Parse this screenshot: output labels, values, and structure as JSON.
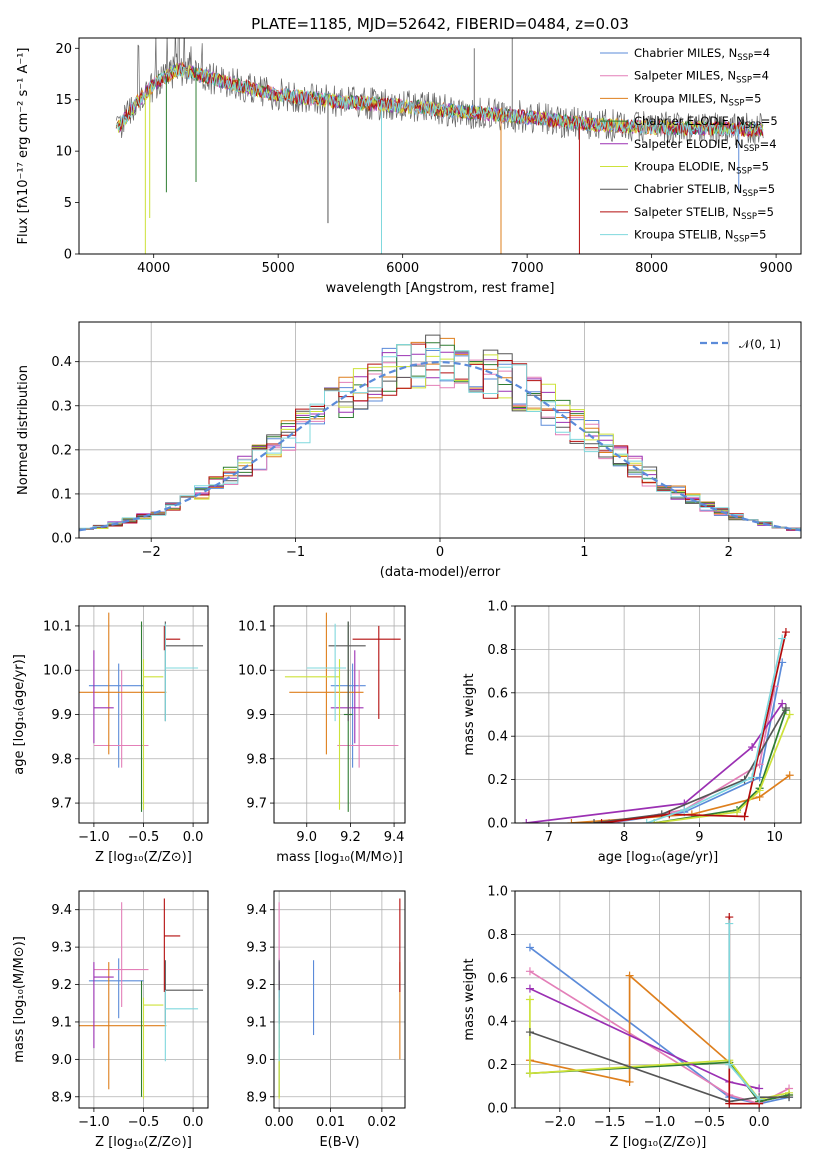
{
  "colors": [
    "#5b8bd9",
    "#e37fb8",
    "#de7f1d",
    "#2e7d32",
    "#9b30b3",
    "#cde23a",
    "#555555",
    "#b30d0d",
    "#7fd8dd"
  ],
  "chart_data": [
    {
      "id": "spectrum",
      "type": "line",
      "title": "PLATE=1185, MJD=52642, FIBERID=0484, z=0.03",
      "xlabel": "wavelength [Angstrom, rest frame]",
      "ylabel": "Flux [fλ10⁻¹⁷ erg cm⁻² s⁻¹ A⁻¹]",
      "xlim": [
        3400,
        9200
      ],
      "ylim": [
        0,
        21
      ],
      "xticks": [
        "4000",
        "5000",
        "6000",
        "7000",
        "8000",
        "9000"
      ],
      "yticks": [
        "0",
        "5",
        "10",
        "15",
        "20"
      ],
      "legend": "top-right",
      "continuum": [
        [
          3700,
          12.0
        ],
        [
          3850,
          14.5
        ],
        [
          4000,
          16.5
        ],
        [
          4200,
          18.0
        ],
        [
          4500,
          17.0
        ],
        [
          4800,
          16.0
        ],
        [
          5000,
          15.5
        ],
        [
          5500,
          14.8
        ],
        [
          6000,
          14.4
        ],
        [
          6500,
          13.8
        ],
        [
          7000,
          13.3
        ],
        [
          7500,
          12.6
        ],
        [
          8000,
          12.3
        ],
        [
          8500,
          12.2
        ],
        [
          8900,
          12.1
        ]
      ],
      "series": [
        {
          "name": "Chabrier MILES, N",
          "sub": "SSP",
          "suffix": "=4"
        },
        {
          "name": "Salpeter MILES, N",
          "sub": "SSP",
          "suffix": "=4"
        },
        {
          "name": "Kroupa MILES, N",
          "sub": "SSP",
          "suffix": "=5"
        },
        {
          "name": "Chabrier ELODIE, N",
          "sub": "SSP",
          "suffix": "=5"
        },
        {
          "name": "Salpeter ELODIE, N",
          "sub": "SSP",
          "suffix": "=4"
        },
        {
          "name": "Kroupa ELODIE, N",
          "sub": "SSP",
          "suffix": "=5"
        },
        {
          "name": "Chabrier STELIB, N",
          "sub": "SSP",
          "suffix": "=5"
        },
        {
          "name": "Salpeter STELIB, N",
          "sub": "SSP",
          "suffix": "=5"
        },
        {
          "name": "Kroupa STELIB, N",
          "sub": "SSP",
          "suffix": "=5"
        }
      ]
    },
    {
      "id": "residuals",
      "type": "step",
      "xlabel": "(data-model)/error",
      "ylabel": "Normed distribution",
      "xlim": [
        -2.5,
        2.5
      ],
      "ylim": [
        0,
        0.49
      ],
      "xticks": [
        "−2",
        "−1",
        "0",
        "1",
        "2"
      ],
      "yticks": [
        "0.0",
        "0.1",
        "0.2",
        "0.3",
        "0.4"
      ],
      "grid": true,
      "legend": "top-right",
      "reference_label": "𝒩(0, 1)",
      "bin_width": 0.1
    },
    {
      "id": "age-vs-Z",
      "type": "errorbar",
      "xlabel": "Z [log₁₀(Z/Z⊙)]",
      "ylabel": "age  [log₁₀(age/yr)]",
      "xlim": [
        -1.15,
        0.15
      ],
      "ylim": [
        9.655,
        10.145
      ],
      "xticks": [
        "−1.0",
        "−0.5",
        "0.0"
      ],
      "yticks": [
        "9.7",
        "9.8",
        "9.9",
        "10.0",
        "10.1"
      ],
      "grid": true,
      "points": [
        {
          "x": -0.75,
          "xerr": [
            0.3,
            0.25
          ],
          "y": 9.965,
          "yerr": [
            0.185,
            0.05
          ]
        },
        {
          "x": -0.72,
          "xerr": [
            0.28,
            0.27
          ],
          "y": 9.83,
          "yerr": [
            0.05,
            0.17
          ]
        },
        {
          "x": -0.85,
          "xerr": [
            0.3,
            0.58
          ],
          "y": 9.95,
          "yerr": [
            0.14,
            0.18
          ]
        },
        {
          "x": -0.52,
          "xerr": [
            0.0,
            0.0
          ],
          "y": 9.9,
          "yerr": [
            0.22,
            0.21
          ]
        },
        {
          "x": -1.0,
          "xerr": [
            0.0,
            0.2
          ],
          "y": 9.915,
          "yerr": [
            0.08,
            0.13
          ]
        },
        {
          "x": -0.5,
          "xerr": [
            0.0,
            0.2
          ],
          "y": 9.985,
          "yerr": [
            0.3,
            0.04
          ]
        },
        {
          "x": -0.28,
          "xerr": [
            0.0,
            0.38
          ],
          "y": 10.055,
          "yerr": [
            0.17,
            0.055
          ]
        },
        {
          "x": -0.29,
          "xerr": [
            0.0,
            0.16
          ],
          "y": 10.07,
          "yerr": [
            0.025,
            0.03
          ]
        },
        {
          "x": -0.28,
          "xerr": [
            0.0,
            0.33
          ],
          "y": 10.005,
          "yerr": [
            0.12,
            0.1
          ]
        }
      ]
    },
    {
      "id": "age-vs-mass",
      "type": "errorbar",
      "xlabel": "mass [log₁₀(M/M⊙)]",
      "ylabel": "",
      "xlim": [
        8.85,
        9.45
      ],
      "ylim": [
        9.655,
        10.145
      ],
      "xticks": [
        "9.0",
        "9.2",
        "9.4"
      ],
      "yticks": [
        "9.7",
        "9.8",
        "9.9",
        "10.0",
        "10.1"
      ],
      "grid": true,
      "points": [
        {
          "x": 9.21,
          "xerr": [
            0.1,
            0.06
          ],
          "y": 9.965,
          "yerr": [
            0.185,
            0.05
          ]
        },
        {
          "x": 9.24,
          "xerr": [
            0.1,
            0.18
          ],
          "y": 9.83,
          "yerr": [
            0.05,
            0.17
          ]
        },
        {
          "x": 9.09,
          "xerr": [
            0.17,
            0.17
          ],
          "y": 9.95,
          "yerr": [
            0.14,
            0.18
          ]
        },
        {
          "x": 9.19,
          "xerr": [
            0.02,
            0.02
          ],
          "y": 9.9,
          "yerr": [
            0.22,
            0.21
          ]
        },
        {
          "x": 9.22,
          "xerr": [
            0.11,
            0.04
          ],
          "y": 9.915,
          "yerr": [
            0.08,
            0.13
          ]
        },
        {
          "x": 9.15,
          "xerr": [
            0.25,
            0.0
          ],
          "y": 9.985,
          "yerr": [
            0.3,
            0.04
          ]
        },
        {
          "x": 9.19,
          "xerr": [
            0.09,
            0.08
          ],
          "y": 10.055,
          "yerr": [
            0.17,
            0.055
          ]
        },
        {
          "x": 9.33,
          "xerr": [
            0.12,
            0.1
          ],
          "y": 10.07,
          "yerr": [
            0.18,
            0.03
          ]
        },
        {
          "x": 9.13,
          "xerr": [
            0.13,
            0.05
          ],
          "y": 10.005,
          "yerr": [
            0.12,
            0.1
          ]
        }
      ]
    },
    {
      "id": "weight-vs-age",
      "type": "line",
      "xlabel": "age  [log₁₀(age/yr)]",
      "ylabel": "mass weight",
      "xlim": [
        6.55,
        10.35
      ],
      "ylim": [
        0,
        1
      ],
      "xticks": [
        "7",
        "8",
        "9",
        "10"
      ],
      "yticks": [
        "0.0",
        "0.2",
        "0.4",
        "0.6",
        "0.8",
        "1.0"
      ],
      "grid": true,
      "series": [
        {
          "x": [
            7.8,
            8.8,
            9.8,
            10.1
          ],
          "y": [
            0.0,
            0.05,
            0.21,
            0.74
          ]
        },
        {
          "x": [
            7.8,
            8.8,
            9.8,
            10.0
          ],
          "y": [
            0.0,
            0.06,
            0.27,
            0.63
          ]
        },
        {
          "x": [
            7.3,
            8.9,
            9.8,
            10.2
          ],
          "y": [
            0.0,
            0.04,
            0.12,
            0.22
          ]
        },
        {
          "x": [
            8.4,
            9.5,
            9.8,
            10.15
          ],
          "y": [
            0.0,
            0.06,
            0.16,
            0.52
          ]
        },
        {
          "x": [
            6.7,
            8.8,
            9.7,
            10.1
          ],
          "y": [
            0.0,
            0.09,
            0.35,
            0.55
          ]
        },
        {
          "x": [
            8.4,
            9.5,
            9.8,
            10.2
          ],
          "y": [
            0.0,
            0.05,
            0.15,
            0.5
          ]
        },
        {
          "x": [
            7.6,
            8.5,
            9.6,
            10.15
          ],
          "y": [
            0.0,
            0.04,
            0.2,
            0.53
          ]
        },
        {
          "x": [
            7.7,
            8.6,
            9.6,
            10.15
          ],
          "y": [
            0.0,
            0.04,
            0.03,
            0.88
          ]
        },
        {
          "x": [
            8.3,
            8.8,
            9.7,
            10.1
          ],
          "y": [
            0.0,
            0.06,
            0.21,
            0.85
          ]
        }
      ]
    },
    {
      "id": "mass-vs-Z",
      "type": "errorbar",
      "xlabel": "Z [log₁₀(Z/Z⊙)]",
      "ylabel": "mass [log₁₀(M/M⊙)]",
      "xlim": [
        -1.15,
        0.15
      ],
      "ylim": [
        8.87,
        9.45
      ],
      "xticks": [
        "−1.0",
        "−0.5",
        "0.0"
      ],
      "yticks": [
        "8.9",
        "9.0",
        "9.1",
        "9.2",
        "9.3",
        "9.4"
      ],
      "grid": true,
      "points": [
        {
          "x": -0.75,
          "xerr": [
            0.3,
            0.25
          ],
          "y": 9.21,
          "yerr": [
            0.1,
            0.06
          ]
        },
        {
          "x": -0.72,
          "xerr": [
            0.28,
            0.27
          ],
          "y": 9.24,
          "yerr": [
            0.1,
            0.18
          ]
        },
        {
          "x": -0.85,
          "xerr": [
            0.3,
            0.58
          ],
          "y": 9.09,
          "yerr": [
            0.17,
            0.17
          ]
        },
        {
          "x": -0.52,
          "xerr": [
            0.0,
            0.0
          ],
          "y": 9.19,
          "yerr": [
            0.29,
            0.02
          ]
        },
        {
          "x": -1.0,
          "xerr": [
            0.0,
            0.2
          ],
          "y": 9.22,
          "yerr": [
            0.19,
            0.04
          ]
        },
        {
          "x": -0.5,
          "xerr": [
            0.0,
            0.2
          ],
          "y": 9.145,
          "yerr": [
            0.25,
            0.02
          ]
        },
        {
          "x": -0.28,
          "xerr": [
            0.0,
            0.38
          ],
          "y": 9.185,
          "yerr": [
            0.09,
            0.08
          ]
        },
        {
          "x": -0.29,
          "xerr": [
            0.0,
            0.16
          ],
          "y": 9.33,
          "yerr": [
            0.15,
            0.1
          ]
        },
        {
          "x": -0.28,
          "xerr": [
            0.0,
            0.33
          ],
          "y": 9.135,
          "yerr": [
            0.14,
            0.05
          ]
        }
      ]
    },
    {
      "id": "mass-vs-ebv",
      "type": "errorbar",
      "xlabel": "E(B-V)",
      "ylabel": "",
      "xlim": [
        -0.001,
        0.0245
      ],
      "ylim": [
        8.87,
        9.45
      ],
      "xticks": [
        "0.00",
        "0.01",
        "0.02"
      ],
      "yticks": [
        "8.9",
        "9.0",
        "9.1",
        "9.2",
        "9.3",
        "9.4"
      ],
      "grid": true,
      "points": [
        {
          "x": 0.0,
          "y": 9.21,
          "yerr": [
            0.1,
            0.06
          ]
        },
        {
          "x": 0.0,
          "y": 9.24,
          "yerr": [
            0.1,
            0.18
          ]
        },
        {
          "x": 0.0235,
          "y": 9.09,
          "yerr": [
            0.09,
            0.17
          ]
        },
        {
          "x": 0.0,
          "y": 9.19,
          "yerr": [
            0.29,
            0.02
          ]
        },
        {
          "x": 0.0,
          "y": 9.22,
          "yerr": [
            0.19,
            0.04
          ]
        },
        {
          "x": 0.0,
          "y": 9.145,
          "yerr": [
            0.25,
            0.02
          ]
        },
        {
          "x": 0.0,
          "y": 9.185,
          "yerr": [
            0.09,
            0.08
          ]
        },
        {
          "x": 0.0235,
          "y": 9.33,
          "yerr": [
            0.15,
            0.1
          ]
        },
        {
          "x": 0.0,
          "y": 9.135,
          "yerr": [
            0.14,
            0.05
          ]
        },
        {
          "x": 0.0067,
          "y": 9.165,
          "yerr": [
            0.1,
            0.1
          ]
        }
      ]
    },
    {
      "id": "weight-vs-Z",
      "type": "line",
      "xlabel": "Z [log₁₀(Z/Z⊙)]",
      "ylabel": "mass weight",
      "xlim": [
        -2.45,
        0.42
      ],
      "ylim": [
        0,
        1
      ],
      "xticks": [
        "−2.0",
        "−1.5",
        "−1.0",
        "−0.5",
        "0.0"
      ],
      "yticks": [
        "0.0",
        "0.2",
        "0.4",
        "0.6",
        "0.8",
        "1.0"
      ],
      "grid": true,
      "series": [
        {
          "x": [
            -2.3,
            -0.3,
            0.0,
            0.3
          ],
          "y": [
            0.74,
            0.05,
            0.02,
            0.05
          ]
        },
        {
          "x": [
            -2.3,
            -0.3,
            0.0,
            0.3
          ],
          "y": [
            0.63,
            0.06,
            0.02,
            0.09
          ]
        },
        {
          "x": [
            -2.3,
            -1.3,
            -1.3,
            -0.3,
            0.0,
            0.3
          ],
          "y": [
            0.22,
            0.12,
            0.61,
            0.21,
            0.03,
            0.06
          ]
        },
        {
          "x": [
            -2.3,
            -0.3,
            0.0,
            0.3
          ],
          "y": [
            0.16,
            0.21,
            0.03,
            0.06
          ]
        },
        {
          "x": [
            -2.3,
            -0.3,
            0.0
          ],
          "y": [
            0.55,
            0.12,
            0.09
          ]
        },
        {
          "x": [
            -2.3,
            -2.3,
            -0.3,
            0.0,
            0.3
          ],
          "y": [
            0.5,
            0.16,
            0.22,
            0.04,
            0.07
          ]
        },
        {
          "x": [
            -2.3,
            -0.3,
            0.0,
            0.3
          ],
          "y": [
            0.35,
            0.03,
            0.05,
            0.05
          ]
        },
        {
          "x": [
            -0.3,
            -0.3,
            0.0
          ],
          "y": [
            0.88,
            0.02,
            0.02
          ]
        },
        {
          "x": [
            -0.3,
            -0.3,
            0.0
          ],
          "y": [
            0.85,
            0.2,
            0.04
          ]
        }
      ]
    }
  ]
}
